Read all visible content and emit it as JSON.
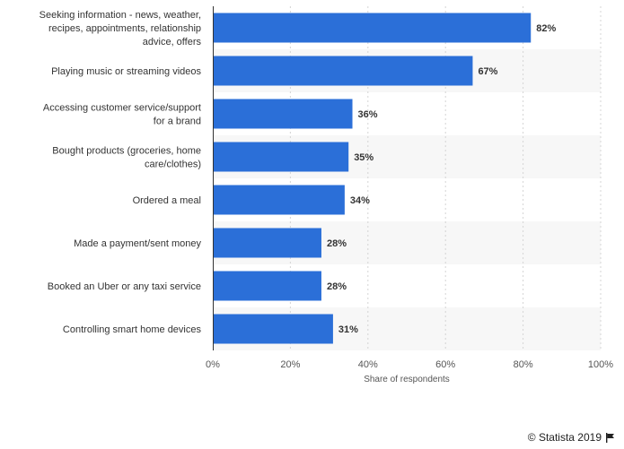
{
  "chart_data": {
    "type": "bar",
    "orientation": "horizontal",
    "categories": [
      "Seeking information - news, weather, recipes, appointments, relationship advice, offers",
      "Playing music or streaming videos",
      "Accessing customer service/support for a brand",
      "Bought products (groceries, home care/clothes)",
      "Ordered a meal",
      "Made a payment/sent money",
      "Booked an Uber or any taxi service",
      "Controlling smart home devices"
    ],
    "category_lines": [
      [
        "Seeking information - news, weather,",
        "recipes, appointments, relationship",
        "advice, offers"
      ],
      [
        "Playing music or streaming videos"
      ],
      [
        "Accessing customer service/support",
        "for a brand"
      ],
      [
        "Bought products (groceries, home",
        "care/clothes)"
      ],
      [
        "Ordered a meal"
      ],
      [
        "Made a payment/sent money"
      ],
      [
        "Booked an Uber or any taxi service"
      ],
      [
        "Controlling smart home devices"
      ]
    ],
    "values": [
      82,
      67,
      36,
      35,
      34,
      28,
      28,
      31
    ],
    "value_labels": [
      "82%",
      "67%",
      "36%",
      "35%",
      "34%",
      "28%",
      "28%",
      "31%"
    ],
    "xlim": [
      0,
      100
    ],
    "ticks": [
      0,
      20,
      40,
      60,
      80,
      100
    ],
    "tick_labels": [
      "0%",
      "20%",
      "40%",
      "60%",
      "80%",
      "100%"
    ],
    "xlabel": "Share of respondents",
    "ylabel": "",
    "grid": true,
    "bar_color": "#2b6fd8"
  },
  "credit": {
    "text": "© Statista 2019",
    "icon": "flag-icon"
  }
}
